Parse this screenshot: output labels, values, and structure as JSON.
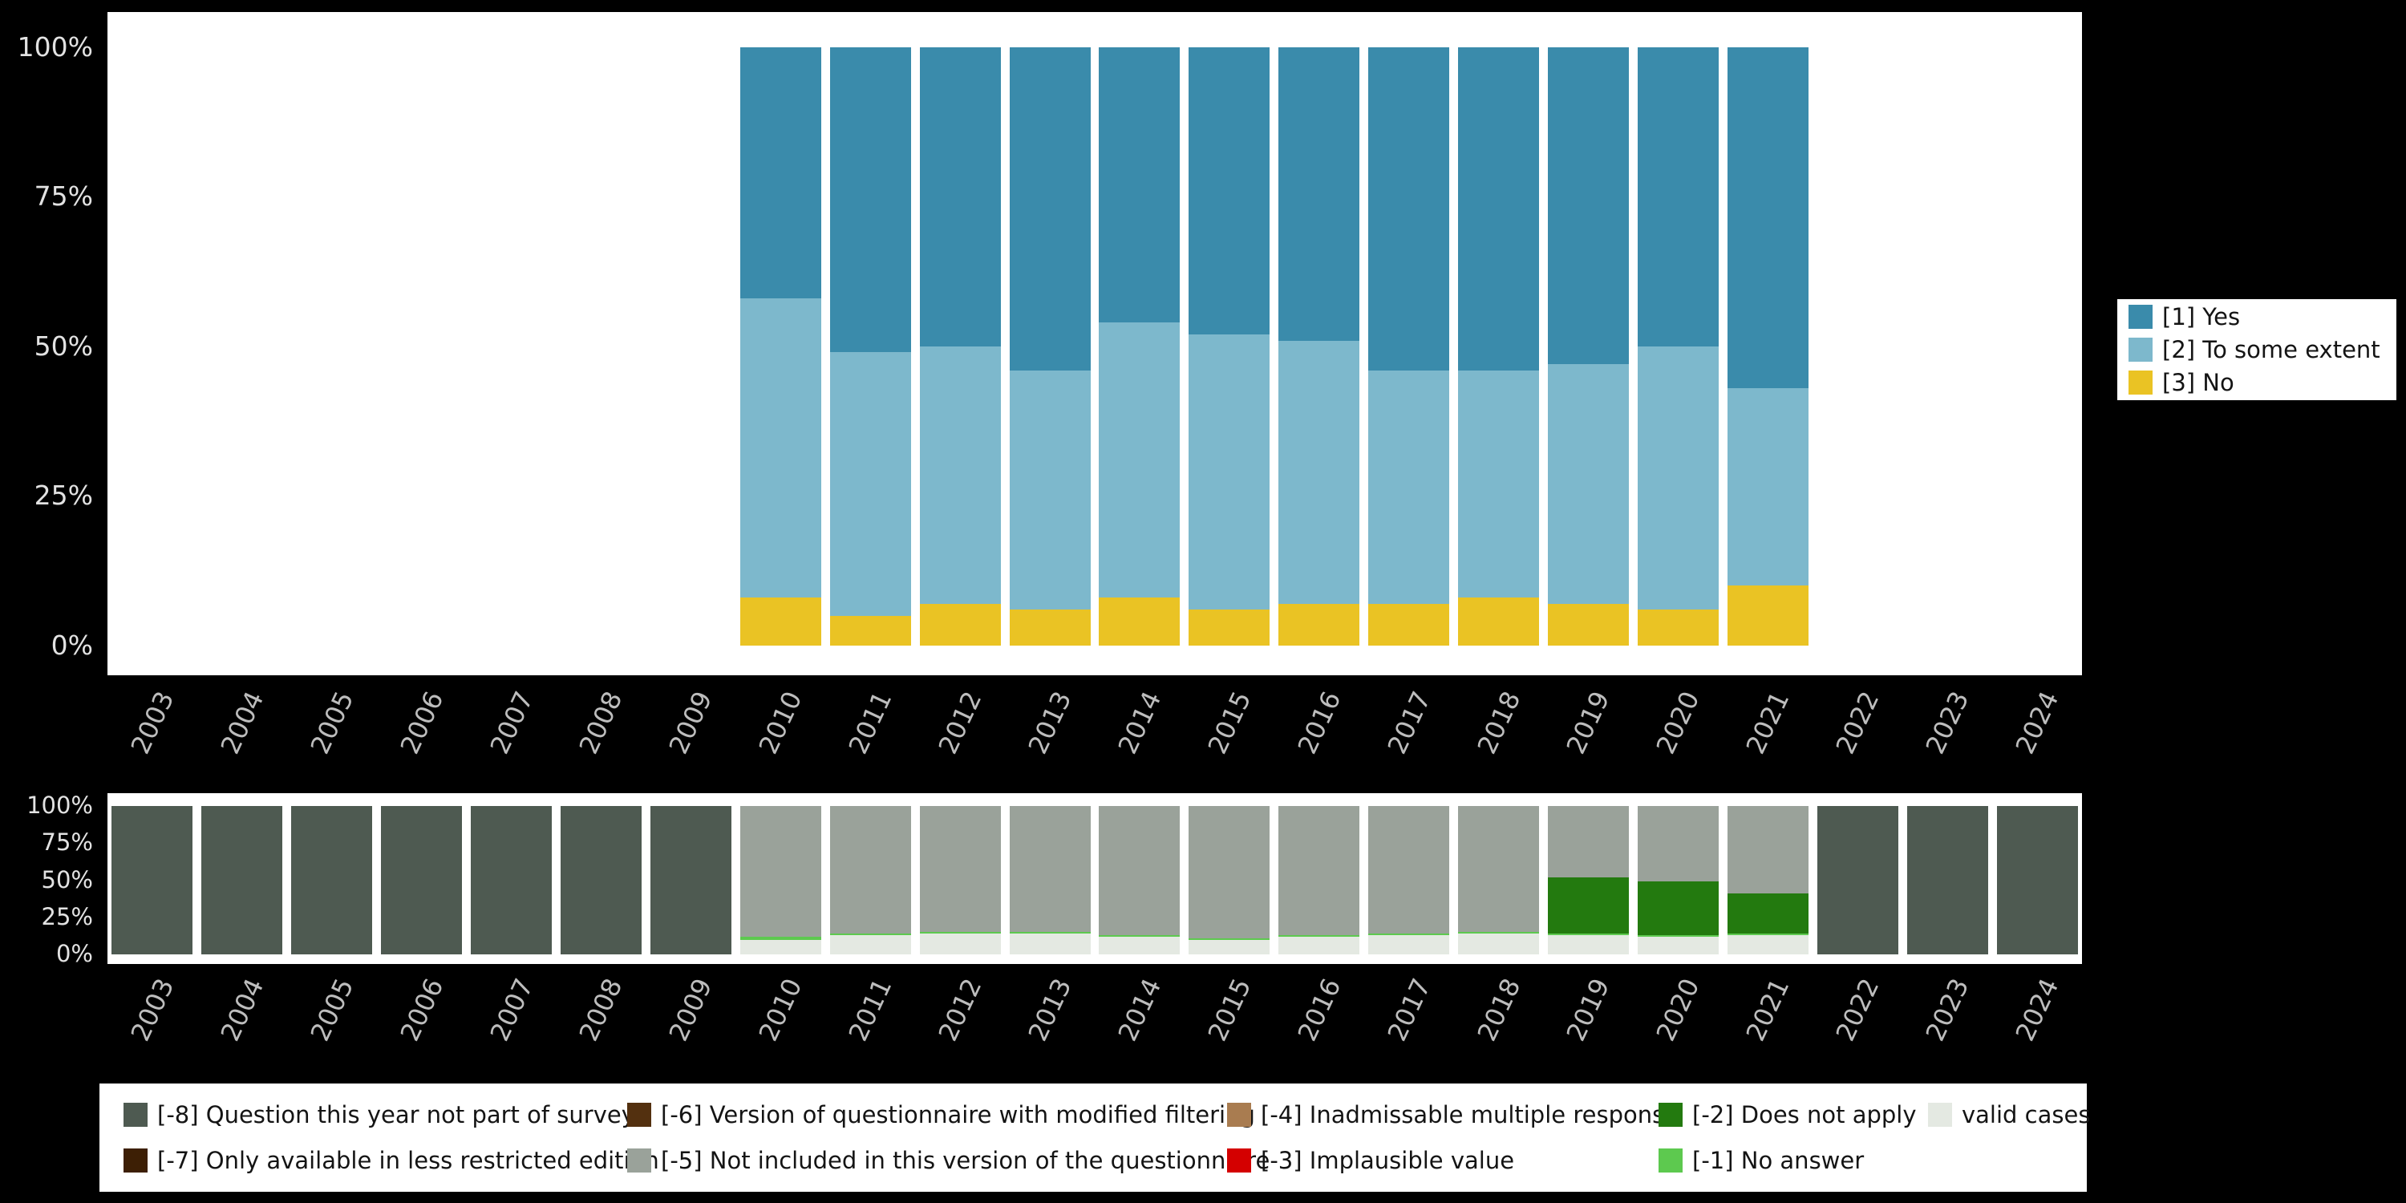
{
  "background": "#000000",
  "chart_data": [
    {
      "type": "bar",
      "subtype": "stacked_percent",
      "panel": "item-responses",
      "title": "",
      "xlabel": "",
      "ylabel": "",
      "ylim": [
        0,
        100
      ],
      "grid": false,
      "legend_position": "right",
      "categories": [
        "2003",
        "2004",
        "2005",
        "2006",
        "2007",
        "2008",
        "2009",
        "2010",
        "2011",
        "2012",
        "2013",
        "2014",
        "2015",
        "2016",
        "2017",
        "2018",
        "2019",
        "2020",
        "2021",
        "2022",
        "2023",
        "2024"
      ],
      "yticks": [
        {
          "label": "0%",
          "value": 0
        },
        {
          "label": "25%",
          "value": 25
        },
        {
          "label": "50%",
          "value": 50
        },
        {
          "label": "75%",
          "value": 75
        },
        {
          "label": "100%",
          "value": 100
        }
      ],
      "series": [
        {
          "name": "[3] No",
          "color": "#eac324",
          "values": [
            null,
            null,
            null,
            null,
            null,
            null,
            null,
            8,
            5,
            7,
            6,
            8,
            6,
            7,
            7,
            8,
            7,
            6,
            10,
            null,
            null,
            null
          ]
        },
        {
          "name": "[2] To some extent",
          "color": "#7db8cc",
          "values": [
            null,
            null,
            null,
            null,
            null,
            null,
            null,
            50,
            44,
            43,
            40,
            46,
            46,
            44,
            39,
            38,
            40,
            44,
            33,
            null,
            null,
            null
          ]
        },
        {
          "name": "[1] Yes",
          "color": "#3a8bab",
          "values": [
            null,
            null,
            null,
            null,
            null,
            null,
            null,
            42,
            51,
            50,
            54,
            46,
            48,
            49,
            54,
            54,
            53,
            50,
            57,
            null,
            null,
            null
          ]
        }
      ],
      "legend": {
        "items": [
          {
            "label": "[1] Yes",
            "color": "#3a8bab"
          },
          {
            "label": "[2] To some extent",
            "color": "#7db8cc"
          },
          {
            "label": "[3] No",
            "color": "#eac324"
          }
        ]
      }
    },
    {
      "type": "bar",
      "subtype": "stacked_percent",
      "panel": "missing-values",
      "title": "",
      "xlabel": "",
      "ylabel": "",
      "ylim": [
        0,
        100
      ],
      "grid": false,
      "legend_position": "bottom",
      "categories": [
        "2003",
        "2004",
        "2005",
        "2006",
        "2007",
        "2008",
        "2009",
        "2010",
        "2011",
        "2012",
        "2013",
        "2014",
        "2015",
        "2016",
        "2017",
        "2018",
        "2019",
        "2020",
        "2021",
        "2022",
        "2023",
        "2024"
      ],
      "yticks": [
        {
          "label": "0%",
          "value": 0
        },
        {
          "label": "25%",
          "value": 25
        },
        {
          "label": "50%",
          "value": 50
        },
        {
          "label": "75%",
          "value": 75
        },
        {
          "label": "100%",
          "value": 100
        }
      ],
      "series": [
        {
          "name": "valid cases",
          "color": "#e4e9e2",
          "values": [
            null,
            null,
            null,
            null,
            null,
            null,
            null,
            10,
            13,
            14,
            14,
            12,
            10,
            12,
            13,
            14,
            13,
            12,
            13,
            null,
            null,
            null
          ]
        },
        {
          "name": "[-1] No answer",
          "color": "#5dc94f",
          "values": [
            null,
            null,
            null,
            null,
            null,
            null,
            null,
            2,
            1,
            1,
            1,
            1,
            1,
            1,
            1,
            1,
            1,
            1,
            1,
            null,
            null,
            null
          ]
        },
        {
          "name": "[-2] Does not apply",
          "color": "#237a0f",
          "values": [
            null,
            null,
            null,
            null,
            null,
            null,
            null,
            null,
            null,
            null,
            null,
            null,
            null,
            null,
            null,
            null,
            38,
            36,
            27,
            null,
            null,
            null
          ]
        },
        {
          "name": "[-5] Not included in this version of the questionnaire",
          "color": "#9aa29a",
          "values": [
            null,
            null,
            null,
            null,
            null,
            null,
            null,
            88,
            86,
            85,
            85,
            87,
            89,
            87,
            86,
            85,
            48,
            51,
            59,
            null,
            null,
            null
          ]
        },
        {
          "name": "[-8] Question this year not part of survey",
          "color": "#4e5a51",
          "values": [
            100,
            100,
            100,
            100,
            100,
            100,
            100,
            null,
            null,
            null,
            null,
            null,
            null,
            null,
            null,
            null,
            null,
            null,
            null,
            100,
            100,
            100
          ]
        }
      ],
      "legend": {
        "items": [
          {
            "label": "[-8] Question this year not part of survey",
            "color": "#4e5a51"
          },
          {
            "label": "[-6] Version of questionnaire with modified filtering",
            "color": "#53300f"
          },
          {
            "label": "[-4] Inadmissable multiple response",
            "color": "#a97c50"
          },
          {
            "label": "[-2] Does not apply",
            "color": "#237a0f"
          },
          {
            "label": "valid cases",
            "color": "#e4e9e2"
          },
          {
            "label": "[-7] Only available in less restricted edition",
            "color": "#3d1f05"
          },
          {
            "label": "[-5] Not included in this version of the questionnaire",
            "color": "#9aa29a"
          },
          {
            "label": "[-3] Implausible value",
            "color": "#d40000"
          },
          {
            "label": "[-1] No answer",
            "color": "#5dc94f"
          }
        ]
      }
    }
  ]
}
